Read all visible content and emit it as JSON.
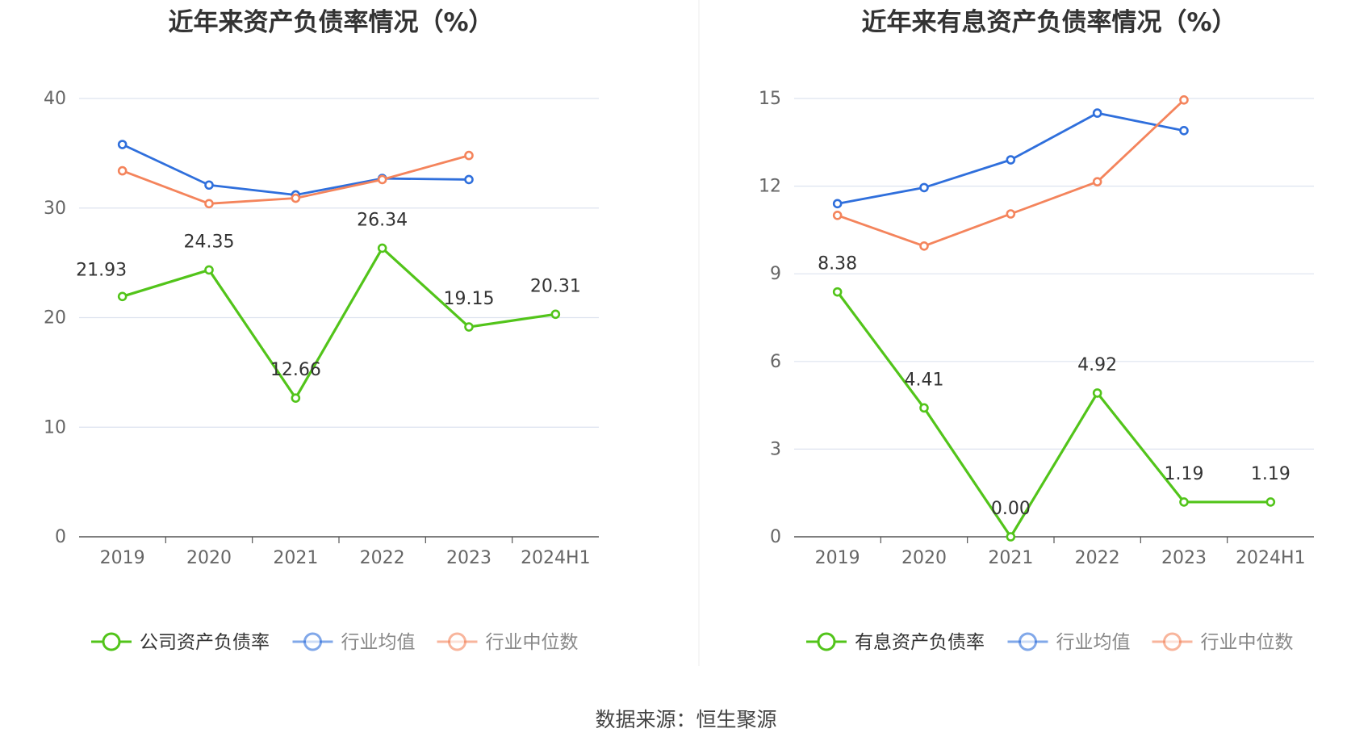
{
  "source_label": "数据来源：恒生聚源",
  "colors": {
    "company": "#52c41a",
    "industry_avg": "#2f6fdc",
    "industry_median": "#f4845c",
    "grid": "#dde3ef",
    "axis": "#555555"
  },
  "chart_data": [
    {
      "type": "line",
      "title": "近年来资产负债率情况（%）",
      "categories": [
        "2019",
        "2020",
        "2021",
        "2022",
        "2023",
        "2024H1"
      ],
      "ylim": [
        0,
        40
      ],
      "yticks": [
        0,
        10,
        20,
        30,
        40
      ],
      "grid": true,
      "legend_position": "bottom",
      "series": [
        {
          "name": "公司资产负债率",
          "key": "company",
          "values": [
            21.93,
            24.35,
            12.66,
            26.34,
            19.15,
            20.31
          ],
          "labels": [
            "21.93",
            "24.35",
            "12.66",
            "26.34",
            "19.15",
            "20.31"
          ]
        },
        {
          "name": "行业均值",
          "key": "industry_avg",
          "values": [
            35.8,
            32.1,
            31.2,
            32.7,
            32.6,
            null
          ]
        },
        {
          "name": "行业中位数",
          "key": "industry_median",
          "values": [
            33.4,
            30.4,
            30.9,
            32.6,
            34.8,
            null
          ]
        }
      ]
    },
    {
      "type": "line",
      "title": "近年来有息资产负债率情况（%）",
      "categories": [
        "2019",
        "2020",
        "2021",
        "2022",
        "2023",
        "2024H1"
      ],
      "ylim": [
        0,
        15
      ],
      "yticks": [
        0,
        3,
        6,
        9,
        12,
        15
      ],
      "grid": true,
      "legend_position": "bottom",
      "series": [
        {
          "name": "有息资产负债率",
          "key": "company",
          "values": [
            8.38,
            4.41,
            0.0,
            4.92,
            1.19,
            1.19
          ],
          "labels": [
            "8.38",
            "4.41",
            "0.00",
            "4.92",
            "1.19",
            "1.19"
          ]
        },
        {
          "name": "行业均值",
          "key": "industry_avg",
          "values": [
            11.4,
            11.95,
            12.9,
            14.5,
            13.9,
            null
          ]
        },
        {
          "name": "行业中位数",
          "key": "industry_median",
          "values": [
            11.0,
            9.95,
            11.05,
            12.15,
            14.95,
            null
          ]
        }
      ]
    }
  ]
}
